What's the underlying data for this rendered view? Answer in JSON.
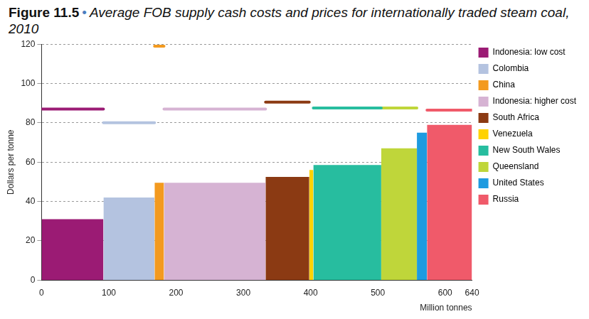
{
  "chart_data": {
    "type": "bar",
    "title": "Figure 11.5 • Average FOB supply cash costs and prices for internationally traded steam coal, 2010",
    "y_label": "Dollars per tonne",
    "x_label": "Million tonnes",
    "xlim": [
      0,
      640
    ],
    "xticks": [
      0,
      100,
      200,
      300,
      400,
      500,
      600,
      640
    ],
    "ylim": [
      0,
      120
    ],
    "yticks": [
      0,
      20,
      40,
      60,
      80,
      100,
      120
    ],
    "grid": true,
    "legend": "right",
    "series": [
      {
        "name": "Indonesia: low cost",
        "color": "#9b1b74",
        "volume": [
          0,
          92
        ],
        "cost": 31,
        "price": 87
      },
      {
        "name": "Colombia",
        "color": "#b4c3e0",
        "volume": [
          92,
          168
        ],
        "cost": 42,
        "price": 80
      },
      {
        "name": "China",
        "color": "#f39a1f",
        "volume": [
          168,
          182
        ],
        "cost": 49.5,
        "price": 119
      },
      {
        "name": "Indonesia: higher cost",
        "color": "#d6b3d3",
        "volume": [
          182,
          333
        ],
        "cost": 49.5,
        "price": 87
      },
      {
        "name": "South Africa",
        "color": "#8b3a13",
        "volume": [
          333,
          398
        ],
        "cost": 52.5,
        "price": 90.5
      },
      {
        "name": "Venezuela",
        "color": "#ffd200",
        "volume": [
          398,
          404
        ],
        "cost": 56,
        "price": null
      },
      {
        "name": "New South Wales",
        "color": "#27bd9f",
        "volume": [
          404,
          505
        ],
        "cost": 58.5,
        "price": 87.5
      },
      {
        "name": "Queensland",
        "color": "#bfd63a",
        "volume": [
          505,
          558
        ],
        "cost": 67,
        "price": 87.5
      },
      {
        "name": "United States",
        "color": "#1e9be0",
        "volume": [
          558,
          573
        ],
        "cost": 75,
        "price": null
      },
      {
        "name": "Russia",
        "color": "#f05a6a",
        "volume": [
          573,
          640
        ],
        "cost": 79,
        "price": 86.5
      }
    ]
  }
}
